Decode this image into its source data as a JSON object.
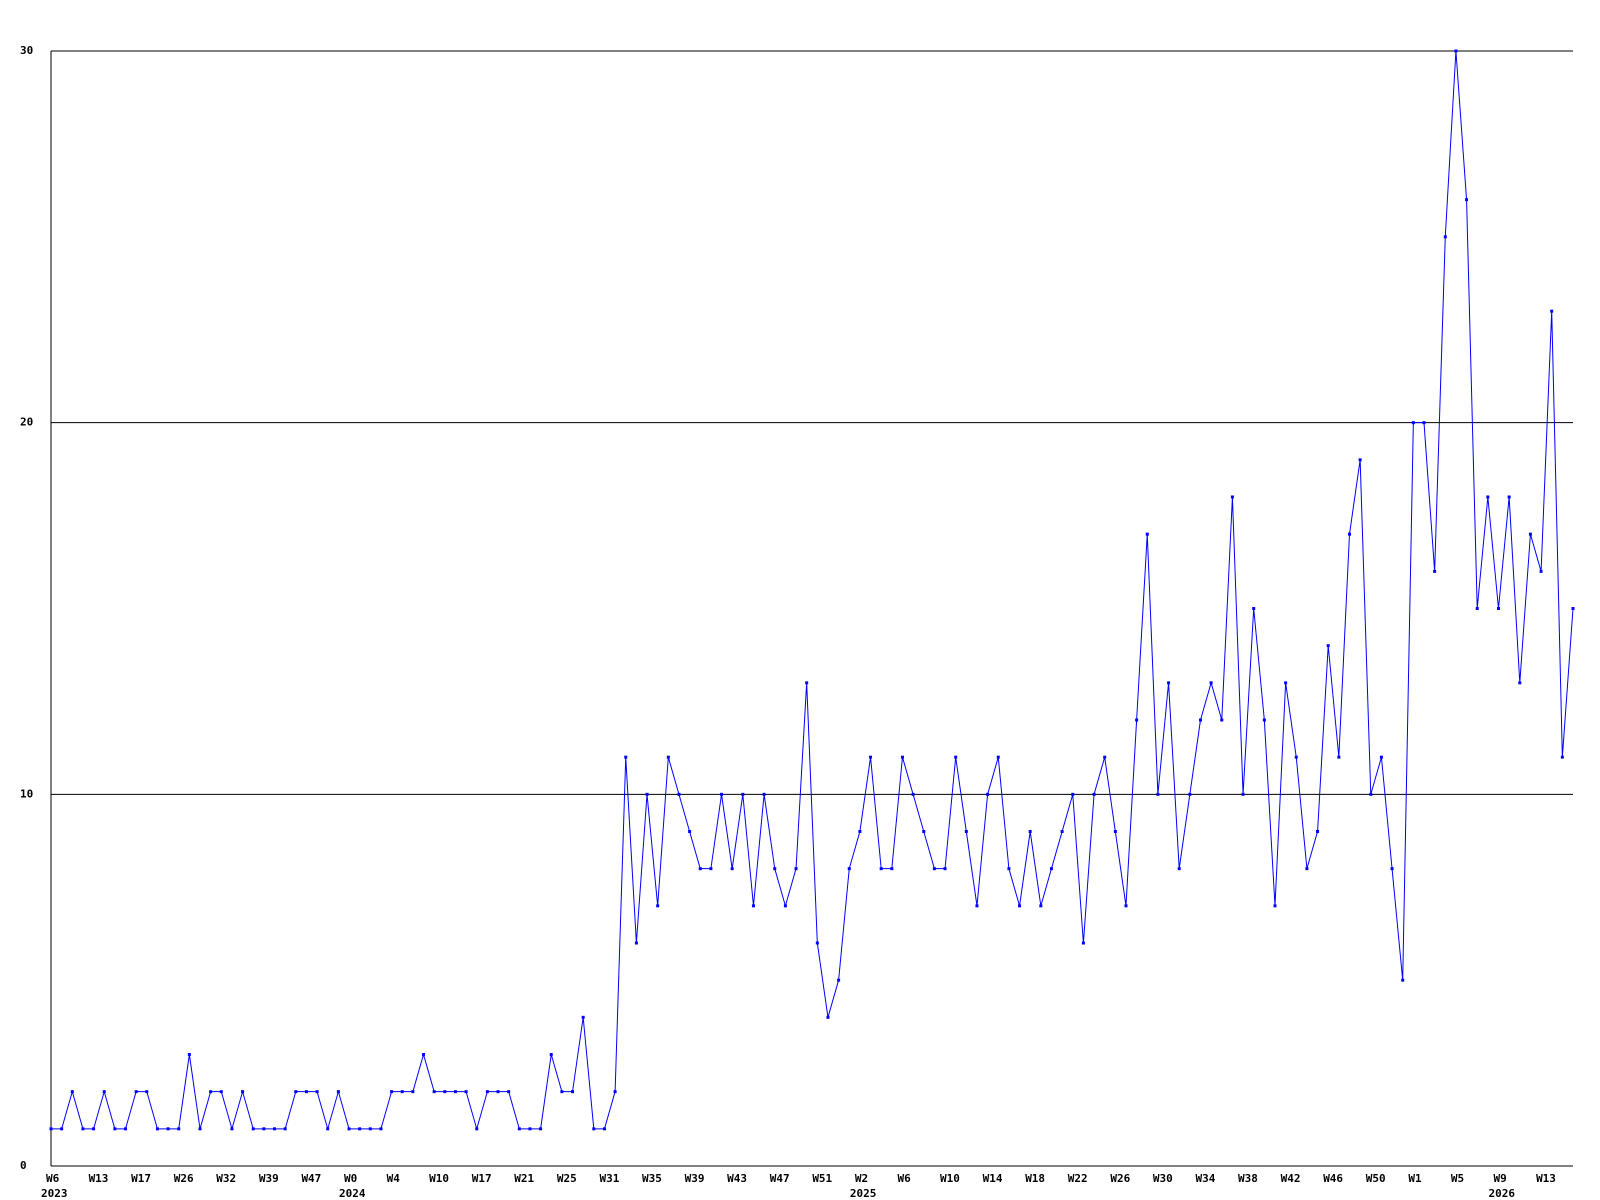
{
  "chart_data": {
    "type": "line",
    "categories": [
      "W6",
      null,
      null,
      null,
      "W13",
      null,
      null,
      null,
      "W17",
      null,
      null,
      null,
      "W26",
      null,
      null,
      null,
      "W32",
      null,
      null,
      null,
      "W39",
      null,
      null,
      null,
      "W47",
      null,
      null,
      null,
      "W0",
      null,
      null,
      null,
      "W4",
      null,
      null,
      null,
      "W10",
      null,
      null,
      null,
      "W17",
      null,
      null,
      null,
      "W21",
      null,
      null,
      null,
      "W25",
      null,
      null,
      null,
      "W31",
      null,
      null,
      null,
      "W35",
      null,
      null,
      null,
      "W39",
      null,
      null,
      null,
      "W43",
      null,
      null,
      null,
      "W47",
      null,
      null,
      null,
      "W51",
      null,
      null,
      null,
      "W2",
      null,
      null,
      null,
      "W6",
      null,
      null,
      null,
      "W10",
      null,
      null,
      null,
      "W14",
      null,
      null,
      null,
      "W18",
      null,
      null,
      null,
      "W22",
      null,
      null,
      null,
      "W26",
      null,
      null,
      null,
      "W30",
      null,
      null,
      null,
      "W34",
      null,
      null,
      null,
      "W38",
      null,
      null,
      null,
      "W42",
      null,
      null,
      null,
      "W46",
      null,
      null,
      null,
      "W50",
      null,
      null,
      null,
      "W1",
      null,
      null,
      null,
      "W5",
      null,
      null,
      null,
      "W9",
      null,
      null,
      null,
      "W13",
      null,
      null,
      null
    ],
    "year_labels": [
      "2023",
      null,
      null,
      null,
      null,
      null,
      null,
      null,
      null,
      null,
      null,
      null,
      null,
      null,
      null,
      null,
      null,
      null,
      null,
      null,
      null,
      null,
      null,
      null,
      null,
      null,
      null,
      null,
      "2024",
      null,
      null,
      null,
      null,
      null,
      null,
      null,
      null,
      null,
      null,
      null,
      null,
      null,
      null,
      null,
      null,
      null,
      null,
      null,
      null,
      null,
      null,
      null,
      null,
      null,
      null,
      null,
      null,
      null,
      null,
      null,
      null,
      null,
      null,
      null,
      null,
      null,
      null,
      null,
      null,
      null,
      null,
      null,
      null,
      null,
      null,
      null,
      "2025",
      null,
      null,
      null,
      null,
      null,
      null,
      null,
      null,
      null,
      null,
      null,
      null,
      null,
      null,
      null,
      null,
      null,
      null,
      null,
      null,
      null,
      null,
      null,
      null,
      null,
      null,
      null,
      null,
      null,
      null,
      null,
      null,
      null,
      null,
      null,
      null,
      null,
      null,
      null,
      null,
      null,
      null,
      null,
      null,
      null,
      null,
      null,
      null,
      null,
      null,
      null,
      null,
      null,
      null,
      null,
      null,
      null,
      null,
      null,
      "2026",
      null,
      null,
      null,
      null,
      null,
      null,
      null,
      null,
      null,
      null,
      null,
      null,
      null,
      null,
      null
    ],
    "series": [
      {
        "color": "#0000ff",
        "values": [
          1,
          1,
          2,
          1,
          1,
          2,
          1,
          1,
          2,
          2,
          1,
          1,
          1,
          3,
          1,
          2,
          2,
          1,
          2,
          1,
          1,
          1,
          1,
          2,
          2,
          2,
          1,
          2,
          1,
          1,
          1,
          1,
          2,
          2,
          2,
          3,
          2,
          2,
          2,
          2,
          1,
          2,
          2,
          2,
          1,
          1,
          1,
          3,
          2,
          2,
          4,
          1,
          1,
          2,
          11,
          6,
          10,
          7,
          11,
          10,
          9,
          8,
          8,
          10,
          8,
          10,
          7,
          10,
          8,
          7,
          8,
          13,
          6,
          4,
          5,
          8,
          9,
          11,
          8,
          8,
          11,
          10,
          9,
          8,
          8,
          11,
          9,
          7,
          10,
          11,
          8,
          7,
          9,
          7,
          8,
          9,
          10,
          6,
          10,
          11,
          9,
          7,
          12,
          17,
          10,
          13,
          8,
          10,
          12,
          13,
          12,
          18,
          10,
          15,
          12,
          7,
          13,
          11,
          8,
          9,
          14,
          11,
          17,
          19,
          10,
          11,
          8,
          5,
          20,
          20,
          16,
          25,
          30,
          26,
          15,
          18,
          15,
          18,
          13,
          17,
          16,
          23,
          11,
          15
        ]
      }
    ],
    "ylim": [
      0,
      30
    ],
    "yticks": [
      0,
      10,
      20,
      30
    ],
    "grid": true
  }
}
